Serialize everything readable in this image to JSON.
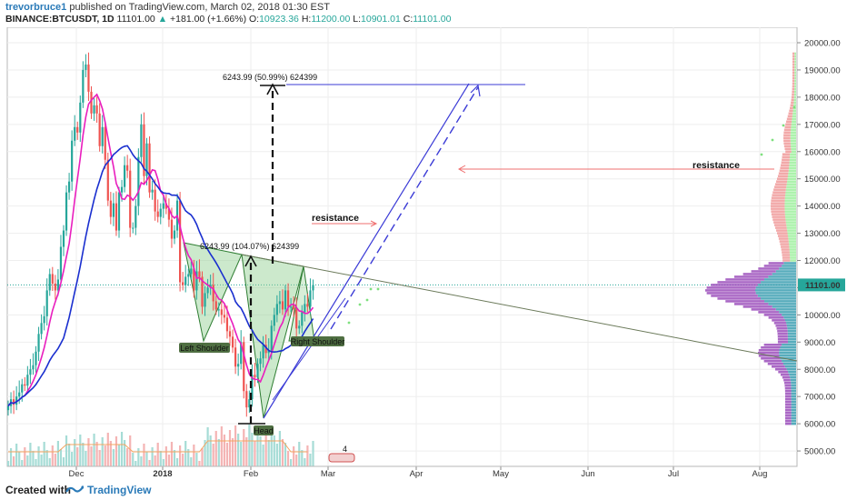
{
  "header": {
    "author": "trevorbruce1",
    "published": "published on TradingView.com, March 02, 2018 01:30 EST",
    "symbol": "BINANCE:BTCUSDT, 1D",
    "last": "11101.00",
    "change": "+181.00 (+1.66%)",
    "o_label": "O:",
    "o_val": "10923.36",
    "h_label": "H:",
    "h_val": "11200.00",
    "l_label": "L:",
    "l_val": "10901.01",
    "c_label": "C:",
    "c_val": "11101.00"
  },
  "footer": {
    "created": "Created with",
    "brand": "TradingView"
  },
  "colors": {
    "up": "#26a69a",
    "down": "#ef5350",
    "ma_fast": "#e91ebe",
    "ma_slow": "#1a2fcf",
    "pattern": "#2e7d32",
    "vp_purple": "#9b4dbb",
    "vp_teal": "#3a9db0"
  },
  "chart_data": {
    "type": "candlestick",
    "x_ticks": [
      "Dec",
      "2018",
      "Feb",
      "Mar",
      "Apr",
      "May",
      "Jun",
      "Jul",
      "Aug"
    ],
    "y_ticks": [
      "20000.00",
      "19000.00",
      "18000.00",
      "17000.00",
      "16000.00",
      "15000.00",
      "14000.00",
      "13000.00",
      "12000.00",
      "11000.00",
      "10000.00",
      "9000.00",
      "8000.00",
      "7000.00",
      "6000.00",
      "5000.00"
    ],
    "ylim": [
      4500,
      20600
    ],
    "last_price_label": "11101.00",
    "closes": [
      6650,
      6900,
      6700,
      7000,
      7150,
      7450,
      7400,
      7800,
      8000,
      8150,
      8650,
      9300,
      9700,
      9950,
      10900,
      11500,
      11150,
      10900,
      11300,
      12500,
      13100,
      14500,
      14900,
      16400,
      16900,
      16700,
      17800,
      19000,
      19200,
      18200,
      17400,
      17700,
      17400,
      16200,
      16900,
      15700,
      14200,
      13600,
      14100,
      13100,
      14500,
      14700,
      15500,
      15300,
      13200,
      13200,
      14000,
      15800,
      17000,
      15100,
      16300,
      14500,
      14600,
      13800,
      13600,
      13900,
      14100,
      13900,
      13500,
      12800,
      13100,
      14200,
      11200,
      11100,
      11400,
      11500,
      11700,
      10900,
      11600,
      11400,
      10300,
      10800,
      11000,
      11100,
      10500,
      10200,
      10200,
      10000,
      9900,
      9400,
      9200,
      8800,
      8100,
      8200,
      9000,
      7200,
      6600,
      6900,
      7800,
      7700,
      8200,
      8400,
      8900,
      8600,
      8700,
      9600,
      10000,
      10400,
      10500,
      10200,
      10900,
      10300,
      10300,
      10200,
      9500,
      9600,
      10100,
      10400,
      10300,
      10900,
      11100
    ],
    "annotations": {
      "measure_top": "6243.99 (50.99%) 624399",
      "measure_mid": "6243.99 (104.07%) 624399",
      "resistance1": "resistance",
      "resistance2": "resistance",
      "left_shoulder": "Left Shoulder",
      "head": "Head",
      "right_shoulder": "Right Shoulder",
      "badge": "4"
    }
  }
}
